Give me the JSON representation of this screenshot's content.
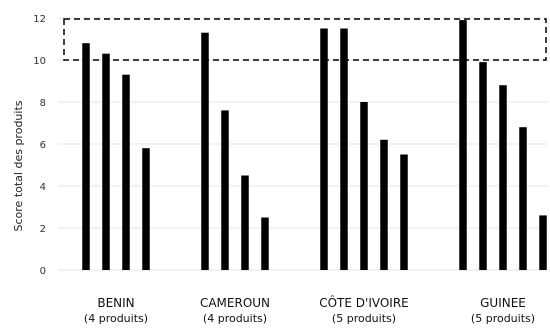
{
  "chart_data": {
    "type": "bar",
    "ylabel": "Score total des produits",
    "ylim": [
      0,
      12
    ],
    "yticks": [
      0,
      2,
      4,
      6,
      8,
      10,
      12
    ],
    "grid": true,
    "highlight_band": {
      "from": 10,
      "to": 12,
      "style": "dashed box"
    },
    "groups": [
      {
        "name": "BENIN",
        "subtitle": "(4 produits)",
        "values": [
          10.8,
          10.3,
          9.3,
          5.8
        ]
      },
      {
        "name": "CAMEROUN",
        "subtitle": "(4 produits)",
        "values": [
          11.3,
          7.6,
          4.5,
          2.5
        ]
      },
      {
        "name": "CÔTE D'IVOIRE",
        "subtitle": "(5 produits)",
        "values": [
          11.5,
          11.5,
          8.0,
          6.2,
          5.5
        ]
      },
      {
        "name": "GUINEE",
        "subtitle": "(5 produits)",
        "values": [
          11.9,
          9.9,
          8.8,
          6.8,
          2.6
        ]
      }
    ],
    "bar_color": "#000000",
    "grid_color": "#e6e6e6"
  }
}
